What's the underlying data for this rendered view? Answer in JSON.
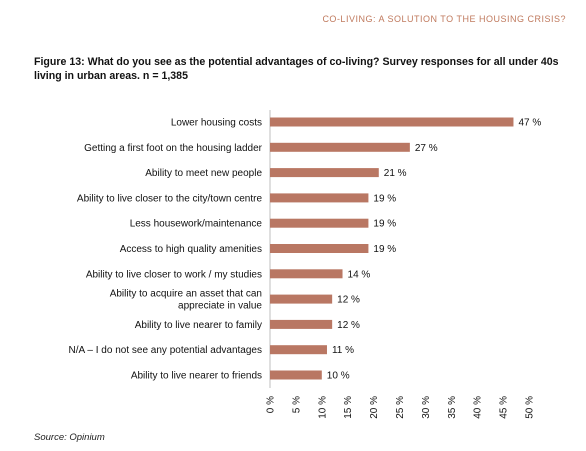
{
  "header": {
    "report_title": "CO-LIVING: A SOLUTION TO THE HOUSING CRISIS?"
  },
  "figure": {
    "title": "Figure 13: What do you see as the potential advantages of co-living? Survey responses for all under 40s living in urban areas. n = 1,385",
    "source": "Source: Opinium"
  },
  "colors": {
    "bar": "#b97763",
    "header": "#c07a5e",
    "axis": "#bfbfbf"
  },
  "chart_data": {
    "type": "bar",
    "orientation": "horizontal",
    "categories": [
      "Lower housing costs",
      "Getting a first foot on the housing ladder",
      "Ability to meet new people",
      "Ability to live closer to the city/town centre",
      "Less housework/maintenance",
      "Access to high quality amenities",
      "Ability to live closer to work / my studies",
      "Ability to acquire an asset that can appreciate in value",
      "Ability to live nearer to family",
      "N/A – I do not see any potential advantages",
      "Ability to live nearer to friends"
    ],
    "category_lines": [
      [
        "Lower housing costs"
      ],
      [
        "Getting a first foot on the housing ladder"
      ],
      [
        "Ability to meet new people"
      ],
      [
        "Ability to live closer to the city/town centre"
      ],
      [
        "Less housework/maintenance"
      ],
      [
        "Access to high quality amenities"
      ],
      [
        "Ability to live closer to work / my studies"
      ],
      [
        "Ability to acquire an asset that can",
        "appreciate in value"
      ],
      [
        "Ability to live nearer to family"
      ],
      [
        "N/A – I do not see any potential advantages"
      ],
      [
        "Ability to live nearer to friends"
      ]
    ],
    "values": [
      47,
      27,
      21,
      19,
      19,
      19,
      14,
      12,
      12,
      11,
      10
    ],
    "data_labels": [
      "47 %",
      "27 %",
      "21 %",
      "19 %",
      "19 %",
      "19 %",
      "14 %",
      "12 %",
      "12 %",
      "11 %",
      "10 %"
    ],
    "xlim": [
      0,
      50
    ],
    "xticks": [
      "0 %",
      "5 %",
      "10 %",
      "15 %",
      "20 %",
      "25 %",
      "30 %",
      "35 %",
      "40 %",
      "45 %",
      "50 %"
    ],
    "xlabel": "",
    "ylabel": "",
    "grid": false,
    "legend": "none"
  }
}
